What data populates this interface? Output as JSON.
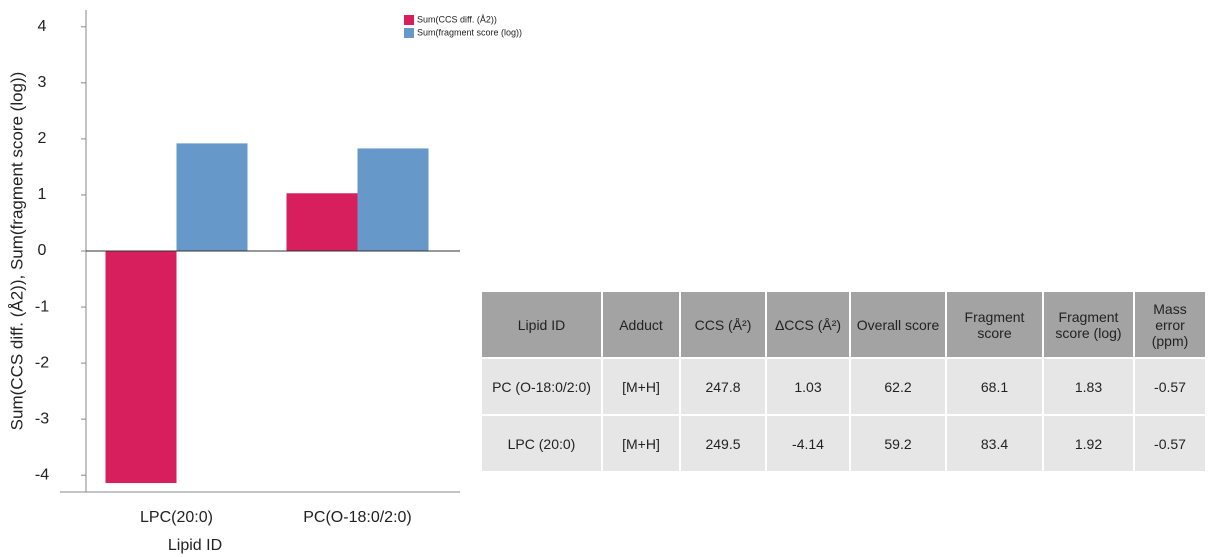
{
  "chart_data": {
    "type": "bar",
    "y_label": "Sum(CCS diff. (Å2)), Sum(fragment score (log))",
    "x_label": "Lipid ID",
    "categories": [
      "LPC(20:0)",
      "PC(O-18:0/2:0)"
    ],
    "series": [
      {
        "name": "Sum(CCS diff. (Å2))",
        "color": "#d61f5c",
        "values": [
          -4.14,
          1.03
        ]
      },
      {
        "name": "Sum(fragment score (log))",
        "color": "#6699c9",
        "values": [
          1.92,
          1.83
        ]
      }
    ],
    "ylim": [
      -4.3,
      4.3
    ],
    "yticks": [
      -4,
      -3,
      -2,
      -1,
      0,
      1,
      2,
      3,
      4
    ],
    "legend": "top-right",
    "grid": false
  },
  "table": {
    "header": [
      "Lipid ID",
      "Adduct",
      "CCS (Å²)",
      "ΔCCS (Å²)",
      "Overall score",
      "Fragment score",
      "Fragment score (log)",
      "Mass error (ppm)"
    ],
    "rows": [
      [
        "PC (O-18:0/2:0)",
        "[M+H]",
        247.8,
        1.03,
        62.2,
        68.1,
        1.83,
        -0.57
      ],
      [
        "LPC (20:0)",
        "[M+H]",
        249.5,
        -4.14,
        59.2,
        83.4,
        1.92,
        -0.57
      ]
    ]
  }
}
